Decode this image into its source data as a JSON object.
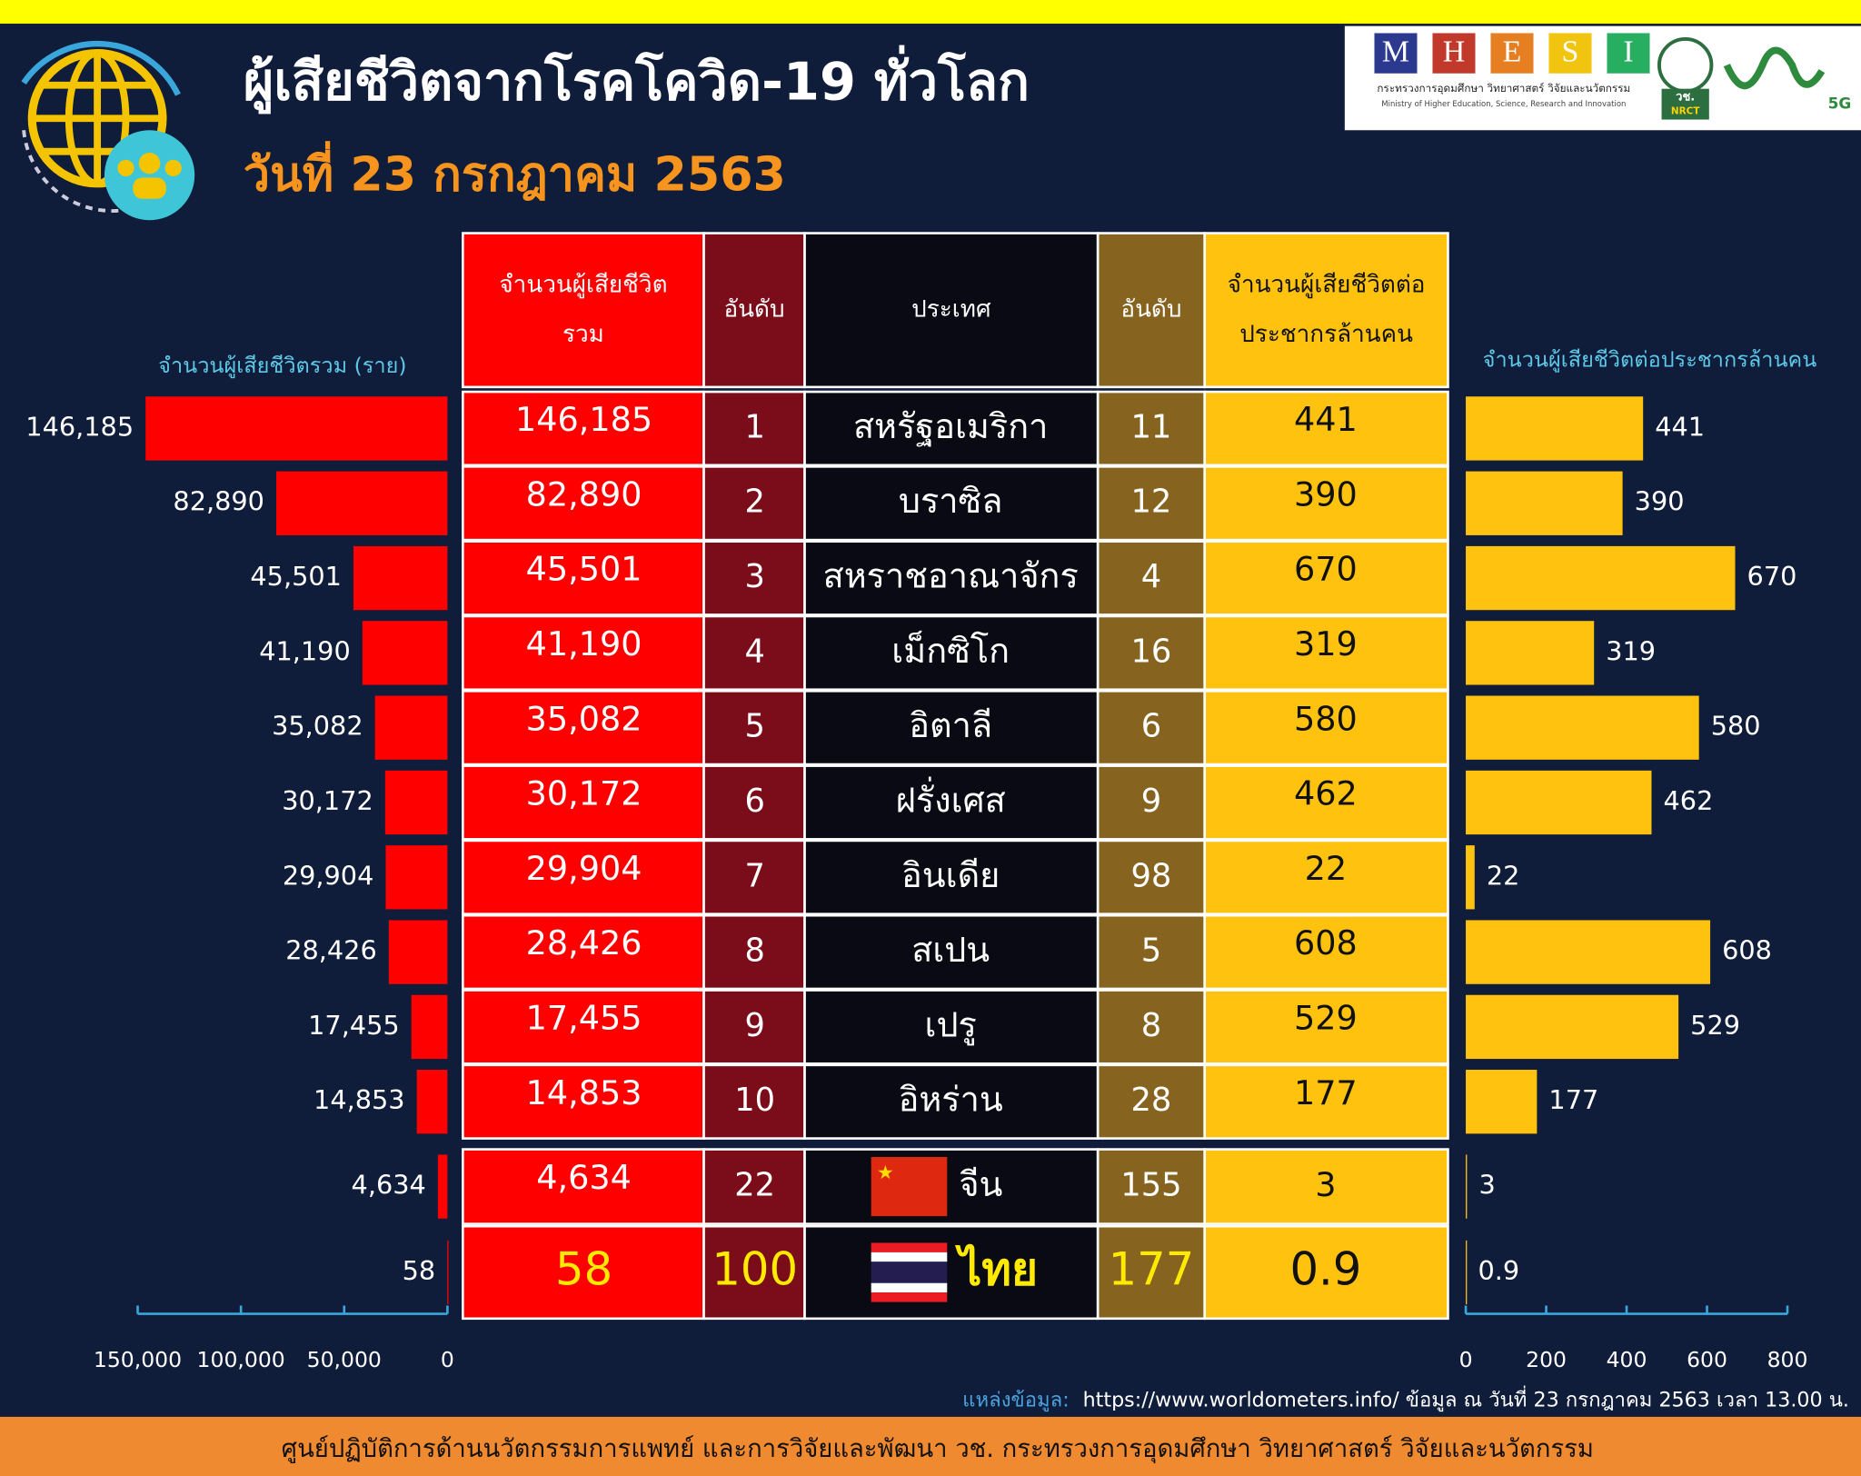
{
  "title": "ผู้เสียชีวิตจากโรคโควิด-19 ทั่วโลก",
  "date": "วันที่ 23 กรกฎาคม 2563",
  "logo": {
    "letters": [
      "M",
      "H",
      "E",
      "S",
      "I"
    ],
    "ministry_th": "กระทรวงการอุดมศึกษา วิทยาศาสตร์ วิจัยและนวัตกรรม",
    "ministry_en": "Ministry of Higher Education, Science, Research and Innovation",
    "nrct_th": "วช.",
    "nrct_en": "NRCT",
    "badge": "5G"
  },
  "table": {
    "headers": [
      [
        "จำนวนผู้เสียชีวิต",
        "รวม"
      ],
      [
        "อันดับ"
      ],
      [
        "ประเทศ"
      ],
      [
        "อันดับ"
      ],
      [
        "จำนวนผู้เสียชีวิตต่อ",
        "ประชากรล้านคน"
      ]
    ],
    "rank_deaths": [
      1,
      2,
      3,
      4,
      5,
      6,
      7,
      8,
      9,
      10,
      22,
      100
    ],
    "rank_per_million": [
      11,
      12,
      4,
      16,
      6,
      9,
      98,
      5,
      8,
      28,
      155,
      177
    ]
  },
  "chart_data": [
    {
      "type": "bar",
      "orientation": "horizontal",
      "x_reversed": true,
      "title": "จำนวนผู้เสียชีวิตรวม (ราย)",
      "categories": [
        "สหรัฐอเมริกา",
        "บราซิล",
        "สหราชอาณาจักร",
        "เม็กซิโก",
        "อิตาลี",
        "ฝรั่งเศส",
        "อินเดีย",
        "สเปน",
        "เปรู",
        "อิหร่าน",
        "จีน",
        "ไทย"
      ],
      "values": [
        146185,
        82890,
        45501,
        41190,
        35082,
        30172,
        29904,
        28426,
        17455,
        14853,
        4634,
        58
      ],
      "value_labels": [
        "146,185",
        "82,890",
        "45,501",
        "41,190",
        "35,082",
        "30,172",
        "29,904",
        "28,426",
        "17,455",
        "14,853",
        "4,634",
        "58"
      ],
      "color": "#ff0000",
      "xlim": [
        0,
        150000
      ],
      "xticks": [
        {
          "value": 150000,
          "label": "150,000"
        },
        {
          "value": 100000,
          "label": "100,000"
        },
        {
          "value": 50000,
          "label": "50,000"
        },
        0
      ]
    },
    {
      "type": "bar",
      "orientation": "horizontal",
      "x_reversed": false,
      "title": "จำนวนผู้เสียชีวิตต่อประชากรล้านคน",
      "values": [
        441,
        390,
        670,
        319,
        580,
        462,
        22,
        608,
        529,
        177,
        3,
        0.9
      ],
      "color": "#ffc20e",
      "xlim": [
        0,
        800
      ],
      "xticks": [
        0,
        200,
        400,
        600,
        800
      ]
    }
  ],
  "source": {
    "label": "แหล่งข้อมูล:",
    "text": "https://www.worldometers.info/ ข้อมูล ณ วันที่ 23 กรกฎาคม 2563 เวลา 13.00 น."
  },
  "footer": "ศูนย์ปฏิบัติการด้านนวัตกรรมการแพทย์ และการวิจัยและพัฒนา วช.   กระทรวงการอุดมศึกษา วิทยาศาสตร์ วิจัยและนวัตกรรม"
}
